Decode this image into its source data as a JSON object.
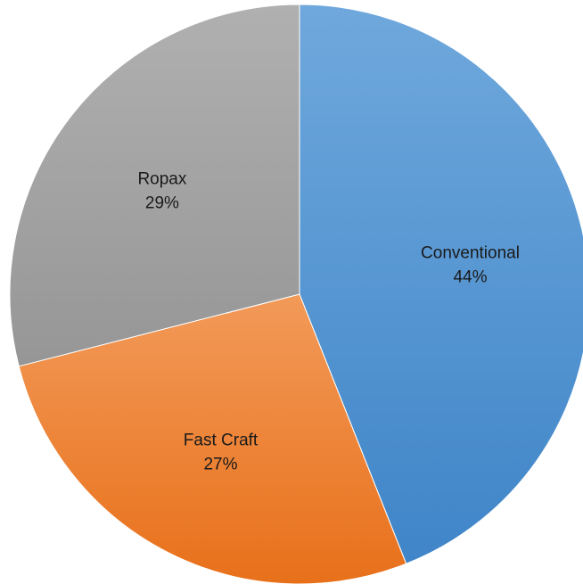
{
  "chart_data": {
    "type": "pie",
    "title": "",
    "legend": "none",
    "start_angle_deg": 0,
    "direction": "clockwise",
    "slices": [
      {
        "category": "Conventional",
        "value": 44,
        "percent_label": "44%",
        "color_top": "#6fa8dc",
        "color_bottom": "#3f85c8"
      },
      {
        "category": "Fast Craft",
        "value": 27,
        "percent_label": "27%",
        "color_top": "#f29a59",
        "color_bottom": "#e8701a"
      },
      {
        "category": "Ropax",
        "value": 29,
        "percent_label": "29%",
        "color_top": "#b0b0b0",
        "color_bottom": "#969696"
      }
    ]
  }
}
